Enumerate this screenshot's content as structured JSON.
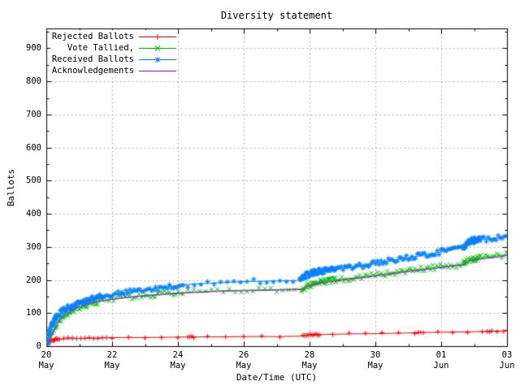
{
  "colors": {
    "background": "#ffffff",
    "border": "#000000",
    "grid": "#b0b0b0",
    "rejected": "#ff0000",
    "tallied": "#00c000",
    "received": "#0080ff",
    "acknowledgements": "#c000ff"
  },
  "chart_data": {
    "type": "line",
    "title": "Diversity statement",
    "xlabel": "Date/Time (UTC)",
    "ylabel": "Ballots",
    "grid": true,
    "legend_position": "top-left",
    "x_axis": {
      "unit": "days since 20 May 00:00 UTC",
      "range_days": [
        0,
        14
      ],
      "major_tick_interval_days": 2,
      "minor_tick_interval_days": 1,
      "ticks": [
        {
          "day_offset": 0,
          "label_top": "20",
          "label_bottom": "May"
        },
        {
          "day_offset": 2,
          "label_top": "22",
          "label_bottom": "May"
        },
        {
          "day_offset": 4,
          "label_top": "24",
          "label_bottom": "May"
        },
        {
          "day_offset": 6,
          "label_top": "26",
          "label_bottom": "May"
        },
        {
          "day_offset": 8,
          "label_top": "28",
          "label_bottom": "May"
        },
        {
          "day_offset": 10,
          "label_top": "30",
          "label_bottom": "May"
        },
        {
          "day_offset": 12,
          "label_top": "01",
          "label_bottom": "Jun"
        },
        {
          "day_offset": 14,
          "label_top": "03",
          "label_bottom": "Jun"
        }
      ]
    },
    "y_axis": {
      "range": [
        0,
        960
      ],
      "tick_step": 100,
      "minor_tick_step": 50,
      "tick_labels": [
        "0",
        "100",
        "200",
        "300",
        "400",
        "500",
        "600",
        "700",
        "800",
        "900"
      ]
    },
    "series": [
      {
        "name": "Rejected Ballots",
        "color": "#ff0000",
        "marker": "plus",
        "marker_jitter": 1.2,
        "marker_segments": [
          [
            0.02,
            0.35,
            0.03
          ],
          [
            0.4,
            1.9,
            0.13
          ],
          [
            2,
            4.2,
            0.5
          ],
          [
            4.3,
            4.5,
            0.06
          ],
          [
            4.9,
            7.5,
            0.55
          ],
          [
            7.8,
            8.3,
            0.05
          ],
          [
            8.7,
            11.2,
            0.5
          ],
          [
            11.3,
            11.5,
            0.08
          ],
          [
            11.9,
            13.3,
            0.45
          ],
          [
            13.4,
            13.6,
            0.07
          ],
          [
            13.7,
            14,
            0.2
          ]
        ],
        "points": [
          [
            0,
            0
          ],
          [
            0.03,
            5
          ],
          [
            0.07,
            11
          ],
          [
            0.12,
            15
          ],
          [
            0.2,
            19
          ],
          [
            0.3,
            21
          ],
          [
            0.5,
            22
          ],
          [
            0.8,
            23
          ],
          [
            1.2,
            24
          ],
          [
            1.7,
            25
          ],
          [
            2.2,
            26
          ],
          [
            3,
            26
          ],
          [
            3.8,
            27
          ],
          [
            4.4,
            28
          ],
          [
            5.2,
            28
          ],
          [
            6,
            29
          ],
          [
            7,
            29
          ],
          [
            7.75,
            30
          ],
          [
            7.85,
            33
          ],
          [
            8,
            34
          ],
          [
            8.3,
            35
          ],
          [
            8.8,
            36
          ],
          [
            9.3,
            37
          ],
          [
            10,
            38
          ],
          [
            10.7,
            39
          ],
          [
            11.4,
            41
          ],
          [
            12,
            42
          ],
          [
            12.6,
            43
          ],
          [
            13.1,
            44
          ],
          [
            13.5,
            45
          ],
          [
            13.8,
            46
          ],
          [
            14,
            47
          ]
        ]
      },
      {
        "name": "Vote Tallied,",
        "color": "#00c000",
        "marker": "cross",
        "marker_jitter": 3.5,
        "marker_segments": [
          [
            0.05,
            0.3,
            0.02
          ],
          [
            0.3,
            1.7,
            0.03
          ],
          [
            1.7,
            4.2,
            0.07
          ],
          [
            4.3,
            7.6,
            0.18
          ],
          [
            7.75,
            8.8,
            0.025
          ],
          [
            8.8,
            12.6,
            0.06
          ],
          [
            12.65,
            13.15,
            0.02
          ],
          [
            13.2,
            14,
            0.07
          ]
        ],
        "points": [
          [
            0,
            0
          ],
          [
            0.05,
            10
          ],
          [
            0.1,
            22
          ],
          [
            0.16,
            36
          ],
          [
            0.23,
            50
          ],
          [
            0.3,
            62
          ],
          [
            0.4,
            76
          ],
          [
            0.5,
            88
          ],
          [
            0.62,
            98
          ],
          [
            0.75,
            106
          ],
          [
            0.9,
            114
          ],
          [
            1.05,
            120
          ],
          [
            1.25,
            127
          ],
          [
            1.5,
            133
          ],
          [
            1.75,
            138
          ],
          [
            2,
            142
          ],
          [
            2.4,
            147
          ],
          [
            2.8,
            151
          ],
          [
            3.2,
            155
          ],
          [
            3.6,
            158
          ],
          [
            4,
            161
          ],
          [
            4.5,
            164
          ],
          [
            5,
            166
          ],
          [
            5.5,
            168
          ],
          [
            6,
            169
          ],
          [
            6.5,
            170
          ],
          [
            7,
            171
          ],
          [
            7.5,
            172
          ],
          [
            7.78,
            173
          ],
          [
            7.9,
            181
          ],
          [
            8.05,
            186
          ],
          [
            8.25,
            191
          ],
          [
            8.5,
            196
          ],
          [
            9,
            202
          ],
          [
            9.5,
            208
          ],
          [
            10,
            215
          ],
          [
            10.5,
            221
          ],
          [
            11,
            228
          ],
          [
            11.5,
            234
          ],
          [
            12,
            240
          ],
          [
            12.35,
            244
          ],
          [
            12.65,
            247
          ],
          [
            12.72,
            250
          ],
          [
            12.82,
            261
          ],
          [
            13,
            264
          ],
          [
            13.3,
            268
          ],
          [
            13.6,
            271
          ],
          [
            14,
            277
          ]
        ]
      },
      {
        "name": "Received Ballots",
        "color": "#0080ff",
        "marker": "star",
        "marker_jitter": 3.5,
        "marker_segments": [
          [
            0.02,
            0.3,
            0.012
          ],
          [
            0.3,
            1.7,
            0.025
          ],
          [
            1.7,
            4.2,
            0.06
          ],
          [
            4.3,
            7.6,
            0.2
          ],
          [
            7.7,
            8.8,
            0.02
          ],
          [
            8.8,
            12.6,
            0.055
          ],
          [
            12.65,
            13.2,
            0.015
          ],
          [
            13.25,
            14,
            0.06
          ]
        ],
        "points": [
          [
            0,
            0
          ],
          [
            0.03,
            12
          ],
          [
            0.06,
            28
          ],
          [
            0.1,
            45
          ],
          [
            0.15,
            60
          ],
          [
            0.2,
            72
          ],
          [
            0.28,
            84
          ],
          [
            0.38,
            96
          ],
          [
            0.5,
            107
          ],
          [
            0.65,
            116
          ],
          [
            0.8,
            123
          ],
          [
            1,
            131
          ],
          [
            1.25,
            139
          ],
          [
            1.5,
            146
          ],
          [
            1.75,
            151
          ],
          [
            2,
            155
          ],
          [
            2.3,
            160
          ],
          [
            2.7,
            165
          ],
          [
            3,
            169
          ],
          [
            3.4,
            175
          ],
          [
            3.8,
            181
          ],
          [
            4.1,
            185
          ],
          [
            4.5,
            188
          ],
          [
            5,
            190
          ],
          [
            5.5,
            193
          ],
          [
            6,
            195
          ],
          [
            6.5,
            196
          ],
          [
            7,
            197
          ],
          [
            7.4,
            198
          ],
          [
            7.72,
            199
          ],
          [
            7.82,
            208
          ],
          [
            7.95,
            216
          ],
          [
            8.1,
            221
          ],
          [
            8.3,
            225
          ],
          [
            8.6,
            229
          ],
          [
            9,
            234
          ],
          [
            9.4,
            240
          ],
          [
            9.8,
            247
          ],
          [
            10.2,
            253
          ],
          [
            10.6,
            260
          ],
          [
            11,
            267
          ],
          [
            11.4,
            274
          ],
          [
            11.8,
            281
          ],
          [
            12.1,
            287
          ],
          [
            12.4,
            293
          ],
          [
            12.65,
            298
          ],
          [
            12.73,
            301
          ],
          [
            12.8,
            315
          ],
          [
            12.95,
            319
          ],
          [
            13.2,
            322
          ],
          [
            13.5,
            325
          ],
          [
            13.8,
            328
          ],
          [
            14,
            331
          ]
        ]
      },
      {
        "name": "Acknowledgements",
        "color": "#c000ff",
        "marker": "none",
        "marker_jitter": 0,
        "marker_segments": [],
        "points": [
          [
            0,
            0
          ],
          [
            0.08,
            14
          ],
          [
            0.15,
            30
          ],
          [
            0.25,
            50
          ],
          [
            0.35,
            68
          ],
          [
            0.45,
            82
          ],
          [
            0.55,
            93
          ],
          [
            0.7,
            104
          ],
          [
            0.85,
            112
          ],
          [
            1,
            119
          ],
          [
            1.2,
            126
          ],
          [
            1.45,
            132
          ],
          [
            1.7,
            137
          ],
          [
            2,
            141
          ],
          [
            2.4,
            146
          ],
          [
            2.8,
            150
          ],
          [
            3.2,
            153
          ],
          [
            3.6,
            156
          ],
          [
            4,
            159
          ],
          [
            4.5,
            162
          ],
          [
            5,
            164
          ],
          [
            5.5,
            166
          ],
          [
            6,
            167
          ],
          [
            6.5,
            168
          ],
          [
            7,
            169
          ],
          [
            7.5,
            170
          ],
          [
            7.8,
            171
          ],
          [
            7.92,
            179
          ],
          [
            8.1,
            185
          ],
          [
            8.4,
            191
          ],
          [
            8.8,
            197
          ],
          [
            9.2,
            202
          ],
          [
            9.7,
            208
          ],
          [
            10.2,
            214
          ],
          [
            10.7,
            221
          ],
          [
            11.2,
            227
          ],
          [
            11.7,
            233
          ],
          [
            12.1,
            239
          ],
          [
            12.45,
            243
          ],
          [
            12.7,
            246
          ],
          [
            12.85,
            257
          ],
          [
            13.1,
            262
          ],
          [
            13.45,
            266
          ],
          [
            13.8,
            270
          ],
          [
            14,
            275
          ]
        ]
      }
    ]
  }
}
